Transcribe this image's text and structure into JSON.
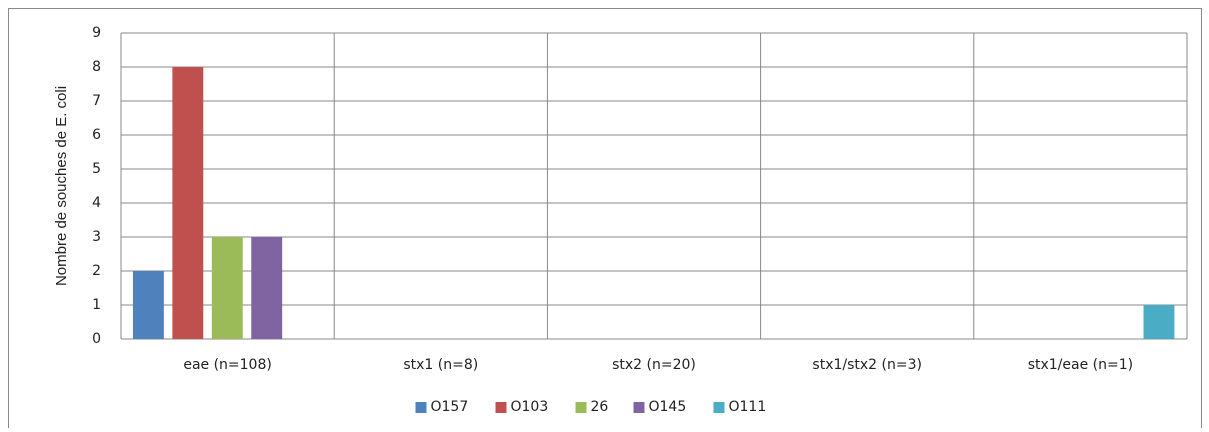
{
  "chart_data": {
    "type": "bar",
    "y_label": "Nombre de souches de E. coli",
    "categories": [
      "eae (n=108)",
      "stx1 (n=8)",
      "stx2 (n=20)",
      "stx1/stx2 (n=3)",
      "stx1/eae (n=1)"
    ],
    "series": [
      {
        "name": "O157",
        "color": "#4f81bd",
        "values": [
          2,
          0,
          0,
          0,
          0
        ]
      },
      {
        "name": "O103",
        "color": "#c0504d",
        "values": [
          8,
          0,
          0,
          0,
          0
        ]
      },
      {
        "name": "26",
        "color": "#9bbb59",
        "values": [
          3,
          0,
          0,
          0,
          0
        ]
      },
      {
        "name": "O145",
        "color": "#8064a2",
        "values": [
          3,
          0,
          0,
          0,
          0
        ]
      },
      {
        "name": "O111",
        "color": "#4bacc6",
        "values": [
          0,
          0,
          0,
          0,
          1
        ]
      }
    ],
    "ylim": [
      0,
      9
    ],
    "yticks": [
      0,
      1,
      2,
      3,
      4,
      5,
      6,
      7,
      8,
      9
    ],
    "grid": true,
    "legend": "bottom"
  }
}
